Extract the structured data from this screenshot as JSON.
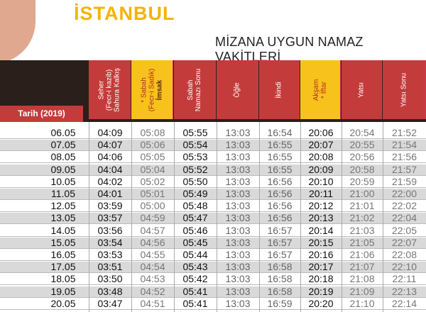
{
  "title": "İSTANBUL",
  "subtitle": "MİZANA UYGUN NAMAZ VAKİTLERİ",
  "date_header": "Tarih (2019)",
  "columns": [
    {
      "l1": "Seher",
      "l2": "(Fecr-i kazib)",
      "l3": "Sahura Kalkış",
      "hl": false
    },
    {
      "l1": "* Sabah",
      "l2": "(Fecr-i Sadık)",
      "l3": "İmsak",
      "hl": true
    },
    {
      "l1": "Sabah",
      "l2": "Namazı Sonu",
      "l3": "",
      "hl": false
    },
    {
      "l1": "Öğle",
      "l2": "",
      "l3": "",
      "hl": false
    },
    {
      "l1": "İkindi",
      "l2": "",
      "l3": "",
      "hl": false
    },
    {
      "l1": "Akşam",
      "l2": "* İftar",
      "l3": "",
      "hl": true
    },
    {
      "l1": "Yatsı",
      "l2": "",
      "l3": "",
      "hl": false
    },
    {
      "l1": "Yatsı Sonu",
      "l2": "",
      "l3": "",
      "hl": false
    }
  ],
  "rows": [
    [
      "06.05",
      "04:09",
      "05:08",
      "05:55",
      "13:03",
      "16:54",
      "20:06",
      "20:54",
      "21:52"
    ],
    [
      "07.05",
      "04:07",
      "05:06",
      "05:54",
      "13:03",
      "16:55",
      "20:07",
      "20:55",
      "21:54"
    ],
    [
      "08.05",
      "04:06",
      "05:05",
      "05:53",
      "13:03",
      "16:55",
      "20:08",
      "20:56",
      "21:56"
    ],
    [
      "09.05",
      "04:04",
      "05:04",
      "05:52",
      "13:03",
      "16:55",
      "20:09",
      "20:58",
      "21:57"
    ],
    [
      "10.05",
      "04:02",
      "05:02",
      "05:50",
      "13:03",
      "16:56",
      "20:10",
      "20:59",
      "21:59"
    ],
    [
      "11.05",
      "04:01",
      "05:01",
      "05:49",
      "13:03",
      "16:56",
      "20:11",
      "21:00",
      "22:00"
    ],
    [
      "12.05",
      "03:59",
      "05:00",
      "05:48",
      "13:03",
      "16:56",
      "20:12",
      "21:01",
      "22:02"
    ],
    [
      "13.05",
      "03:57",
      "04:59",
      "05:47",
      "13:03",
      "16:56",
      "20:13",
      "21:02",
      "22:04"
    ],
    [
      "14.05",
      "03:56",
      "04:57",
      "05:46",
      "13:03",
      "16:57",
      "20:14",
      "21:03",
      "22:05"
    ],
    [
      "15.05",
      "03:54",
      "04:56",
      "05:45",
      "13:03",
      "16:57",
      "20:15",
      "21:05",
      "22:07"
    ],
    [
      "16.05",
      "03:53",
      "04:55",
      "05:44",
      "13:03",
      "16:57",
      "20:16",
      "21:06",
      "22:08"
    ],
    [
      "17.05",
      "03:51",
      "04:54",
      "05:43",
      "13:03",
      "16:58",
      "20:17",
      "21:07",
      "22:10"
    ],
    [
      "18.05",
      "03:50",
      "04:53",
      "05:42",
      "13:03",
      "16:58",
      "20:18",
      "21:08",
      "22:11"
    ],
    [
      "19.05",
      "03:48",
      "04:52",
      "05:41",
      "13:03",
      "16:58",
      "20:19",
      "21:09",
      "22:13"
    ],
    [
      "20.05",
      "03:47",
      "04:51",
      "05:41",
      "13:03",
      "16:59",
      "20:20",
      "21:10",
      "22:14"
    ]
  ]
}
